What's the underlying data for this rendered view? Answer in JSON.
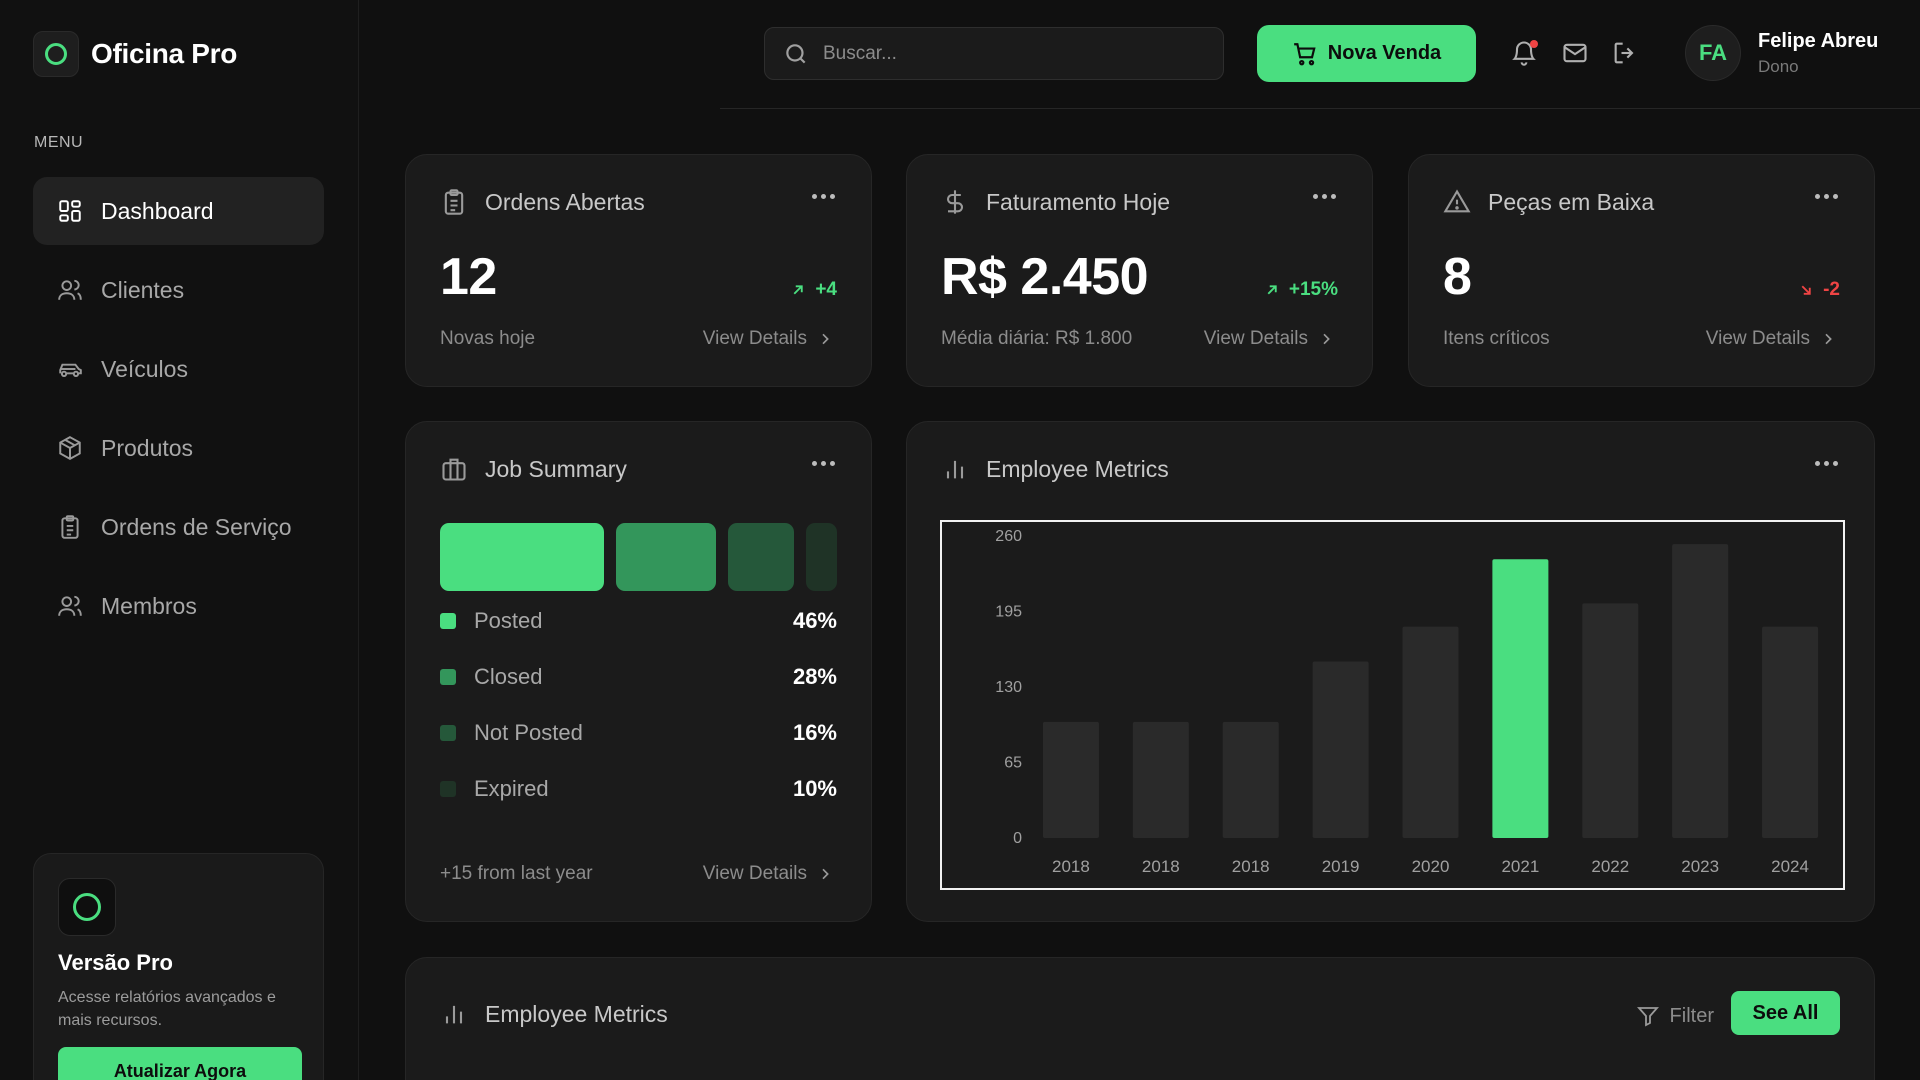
{
  "brand": {
    "name": "Oficina Pro"
  },
  "sidebar": {
    "menu_label": "MENU",
    "items": [
      {
        "label": "Dashboard",
        "icon": "grid-icon",
        "active": true
      },
      {
        "label": "Clientes",
        "icon": "users-icon"
      },
      {
        "label": "Veículos",
        "icon": "car-icon"
      },
      {
        "label": "Produtos",
        "icon": "box-icon"
      },
      {
        "label": "Ordens de Serviço",
        "icon": "clipboard-icon"
      },
      {
        "label": "Membros",
        "icon": "users-icon"
      }
    ],
    "pro_card": {
      "title": "Versão Pro",
      "description": "Acesse relatórios avançados e mais recursos.",
      "button": "Atualizar Agora"
    }
  },
  "header": {
    "search_placeholder": "Buscar...",
    "new_sale_label": "Nova Venda",
    "user": {
      "initials": "FA",
      "name": "Felipe Abreu",
      "role": "Dono"
    }
  },
  "stats": [
    {
      "title": "Ordens Abertas",
      "icon": "clipboard-icon",
      "value": "12",
      "delta": "+4",
      "trend": "up",
      "subtitle": "Novas hoje",
      "link": "View Details"
    },
    {
      "title": "Faturamento Hoje",
      "icon": "dollar-icon",
      "value": "R$ 2.450",
      "delta": "+15%",
      "trend": "up",
      "subtitle": "Média diária: R$ 1.800",
      "link": "View Details"
    },
    {
      "title": "Peças em Baixa",
      "icon": "warning-icon",
      "value": "8",
      "delta": "-2",
      "trend": "down",
      "subtitle": "Itens críticos",
      "link": "View Details"
    }
  ],
  "job_summary": {
    "title": "Job Summary",
    "items": [
      {
        "label": "Posted",
        "percent": "46%",
        "value": 46,
        "color": "#4ade80"
      },
      {
        "label": "Closed",
        "percent": "28%",
        "value": 28,
        "color": "#33965b"
      },
      {
        "label": "Not Posted",
        "percent": "16%",
        "value": 16,
        "color": "#25583a"
      },
      {
        "label": "Expired",
        "percent": "10%",
        "value": 10,
        "color": "#1f3326"
      }
    ],
    "footer": "+15 from last year",
    "link": "View Details"
  },
  "employee_metrics": {
    "title": "Employee Metrics",
    "chart_data": {
      "type": "bar",
      "categories": [
        "2018",
        "2018",
        "2018",
        "2019",
        "2020",
        "2021",
        "2022",
        "2023",
        "2024"
      ],
      "values": [
        100,
        100,
        100,
        152,
        182,
        240,
        202,
        253,
        182
      ],
      "highlight_index": 5,
      "yticks": [
        0,
        65,
        130,
        195,
        260
      ],
      "ylim": [
        0,
        260
      ],
      "bar_color": "#2a2a2a",
      "highlight_color": "#4ade80"
    }
  },
  "bottom_card": {
    "title": "Employee Metrics",
    "filter_label": "Filter",
    "see_all_label": "See All"
  }
}
